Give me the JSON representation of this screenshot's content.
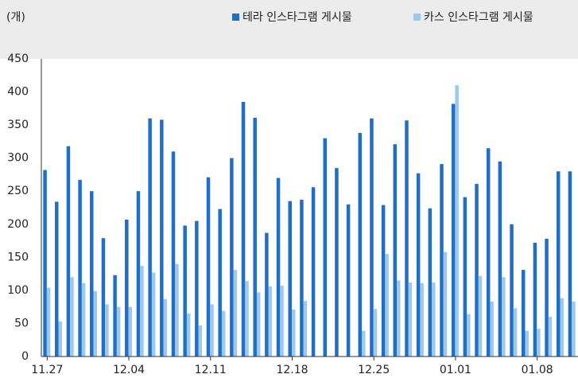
{
  "chart_data": {
    "type": "bar",
    "unit_label": "(개)",
    "categories": [
      "11.27",
      null,
      null,
      null,
      null,
      null,
      null,
      "12.04",
      null,
      null,
      null,
      null,
      null,
      null,
      "12.11",
      null,
      null,
      null,
      null,
      null,
      null,
      "12.18",
      null,
      null,
      null,
      null,
      null,
      null,
      "12.25",
      null,
      null,
      null,
      null,
      null,
      null,
      "01.01",
      null,
      null,
      null,
      null,
      null,
      null,
      "01.08",
      null,
      null,
      null
    ],
    "series": [
      {
        "name": "테라 인스타그램 게시물",
        "color": "#1f6fc6",
        "values": [
          282,
          234,
          318,
          267,
          250,
          179,
          123,
          207,
          250,
          360,
          358,
          310,
          198,
          205,
          271,
          223,
          300,
          385,
          361,
          187,
          270,
          235,
          237,
          256,
          330,
          285,
          230,
          338,
          360,
          229,
          321,
          357,
          277,
          224,
          291,
          382,
          241,
          261,
          315,
          295,
          200,
          131,
          172,
          178,
          280,
          280
        ]
      },
      {
        "name": "카스 인스타그램 게시물",
        "color": "#9dc9f1",
        "values": [
          104,
          53,
          120,
          111,
          99,
          79,
          75,
          75,
          137,
          127,
          87,
          140,
          65,
          47,
          79,
          69,
          131,
          114,
          97,
          106,
          107,
          71,
          84,
          0,
          0,
          0,
          0,
          39,
          72,
          155,
          115,
          112,
          111,
          112,
          158,
          410,
          64,
          122,
          83,
          120,
          73,
          39,
          42,
          60,
          88,
          83
        ]
      }
    ],
    "ylim": [
      0,
      450
    ],
    "yticks": [
      0,
      50,
      100,
      150,
      200,
      250,
      300,
      350,
      400,
      450
    ],
    "grid": false,
    "legend": "top-right"
  }
}
